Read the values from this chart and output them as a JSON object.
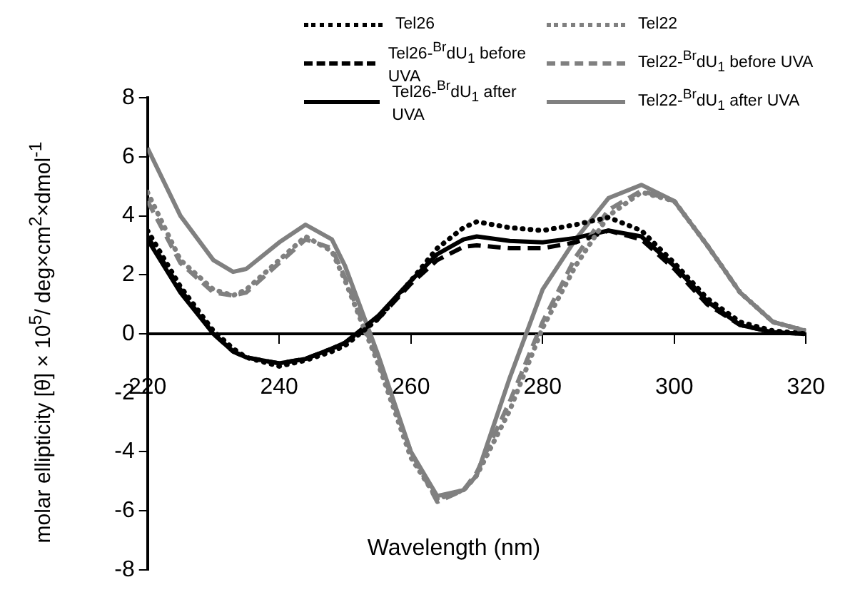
{
  "chart_data": {
    "type": "line",
    "xlabel": "Wavelength (nm)",
    "ylabel": "molar ellipticity [θ] × 10$^{5}$/ deg×cm$^{2}$×dmol$^{-1}$",
    "x": [
      220,
      225,
      230,
      233,
      235,
      240,
      244,
      248,
      250,
      255,
      260,
      264,
      268,
      270,
      275,
      280,
      285,
      290,
      295,
      300,
      305,
      310,
      315,
      320
    ],
    "xlim": [
      220,
      320
    ],
    "xticks": [
      220,
      240,
      260,
      280,
      300,
      320
    ],
    "ylim": [
      -8,
      8
    ],
    "yticks": [
      -8,
      -6,
      -4,
      -2,
      0,
      2,
      4,
      6,
      8
    ],
    "legend": "top",
    "series": [
      {
        "name": "Tel26",
        "color": "#000000",
        "line_style": "dotted",
        "values": [
          3.5,
          1.6,
          0.1,
          -0.5,
          -0.8,
          -1.1,
          -0.9,
          -0.6,
          -0.4,
          0.5,
          1.8,
          2.9,
          3.6,
          3.8,
          3.6,
          3.5,
          3.7,
          3.95,
          3.5,
          2.4,
          1.2,
          0.4,
          0.1,
          0.0
        ]
      },
      {
        "name": "Tel22",
        "color": "#808080",
        "line_style": "dotted",
        "values": [
          4.8,
          2.5,
          1.5,
          1.3,
          1.5,
          2.5,
          3.3,
          2.8,
          1.8,
          -1.0,
          -4.2,
          -5.6,
          -5.3,
          -4.8,
          -2.6,
          0.2,
          2.3,
          4.0,
          4.8,
          4.5,
          3.0,
          1.4,
          0.4,
          0.1
        ]
      },
      {
        "name": "Tel26-$^{Br}$dU$_{1}$ before UVA",
        "color": "#000000",
        "line_style": "dashed",
        "values": [
          3.3,
          1.5,
          0.0,
          -0.6,
          -0.8,
          -1.0,
          -0.85,
          -0.5,
          -0.3,
          0.5,
          1.7,
          2.5,
          2.95,
          3.0,
          2.9,
          2.9,
          3.1,
          3.5,
          3.2,
          2.2,
          1.0,
          0.3,
          0.05,
          0.0
        ]
      },
      {
        "name": "Tel22-$^{Br}$dU$_{1}$ before UVA",
        "color": "#808080",
        "line_style": "dashed",
        "values": [
          4.5,
          2.4,
          1.4,
          1.3,
          1.4,
          2.4,
          3.2,
          2.9,
          1.9,
          -0.9,
          -4.0,
          -5.7,
          -5.3,
          -4.7,
          -2.3,
          0.4,
          2.6,
          4.2,
          4.85,
          4.5,
          3.0,
          1.4,
          0.4,
          0.1
        ]
      },
      {
        "name": "Tel26-$^{Br}$dU$_{1}$ after UVA",
        "color": "#000000",
        "line_style": "solid",
        "values": [
          3.2,
          1.4,
          0.0,
          -0.6,
          -0.8,
          -1.0,
          -0.85,
          -0.5,
          -0.3,
          0.6,
          1.8,
          2.7,
          3.2,
          3.3,
          3.15,
          3.1,
          3.25,
          3.5,
          3.3,
          2.3,
          1.1,
          0.3,
          0.05,
          0.0
        ]
      },
      {
        "name": "Tel22-$^{Br}$dU$_{1}$ after UVA",
        "color": "#808080",
        "line_style": "solid",
        "values": [
          6.3,
          4.0,
          2.5,
          2.1,
          2.2,
          3.1,
          3.7,
          3.2,
          2.3,
          -0.7,
          -4.0,
          -5.5,
          -5.3,
          -4.8,
          -1.5,
          1.5,
          3.2,
          4.6,
          5.05,
          4.5,
          3.0,
          1.4,
          0.4,
          0.1
        ]
      }
    ]
  }
}
